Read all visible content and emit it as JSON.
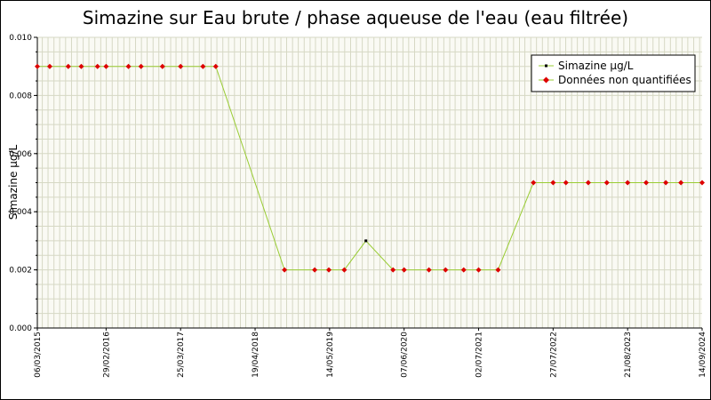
{
  "chart_data": {
    "type": "line",
    "title": "Simazine sur Eau brute / phase aqueuse de l'eau (eau filtrée)",
    "ylabel": "Simazine µg/L",
    "xlabel": "",
    "ylim": [
      0,
      0.01
    ],
    "y_ticks": [
      "0.000",
      "0.002",
      "0.004",
      "0.006",
      "0.008",
      "0.010"
    ],
    "x_range": [
      "2015-03-06",
      "2024-09-14"
    ],
    "x_tick_labels": [
      {
        "date": "2015-03-06",
        "label": "06/03/2015"
      },
      {
        "date": "2016-02-29",
        "label": "29/02/2016"
      },
      {
        "date": "2017-03-25",
        "label": "25/03/2017"
      },
      {
        "date": "2018-04-19",
        "label": "19/04/2018"
      },
      {
        "date": "2019-05-14",
        "label": "14/05/2019"
      },
      {
        "date": "2020-06-07",
        "label": "07/06/2020"
      },
      {
        "date": "2021-07-02",
        "label": "02/07/2021"
      },
      {
        "date": "2022-07-27",
        "label": "27/07/2022"
      },
      {
        "date": "2023-08-21",
        "label": "21/08/2023"
      },
      {
        "date": "2024-09-14",
        "label": "14/09/2024"
      }
    ],
    "grid": true,
    "legend_position": "top-right",
    "line_color": "#99cc33",
    "series": [
      {
        "name": "Simazine µg/L",
        "color": "#000000",
        "points": [
          {
            "x": "2019-11-20",
            "y": 0.003
          }
        ]
      },
      {
        "name": "Données non quantifiées",
        "color": "#dd0000",
        "points": [
          {
            "x": "2015-03-06",
            "y": 0.009
          },
          {
            "x": "2015-05-10",
            "y": 0.009
          },
          {
            "x": "2015-08-15",
            "y": 0.009
          },
          {
            "x": "2015-10-22",
            "y": 0.009
          },
          {
            "x": "2016-01-15",
            "y": 0.009
          },
          {
            "x": "2016-02-29",
            "y": 0.009
          },
          {
            "x": "2016-06-25",
            "y": 0.009
          },
          {
            "x": "2016-08-30",
            "y": 0.009
          },
          {
            "x": "2016-12-20",
            "y": 0.009
          },
          {
            "x": "2017-03-25",
            "y": 0.009
          },
          {
            "x": "2017-07-20",
            "y": 0.009
          },
          {
            "x": "2017-09-25",
            "y": 0.009
          },
          {
            "x": "2018-09-20",
            "y": 0.002
          },
          {
            "x": "2019-02-25",
            "y": 0.002
          },
          {
            "x": "2019-05-10",
            "y": 0.002
          },
          {
            "x": "2019-07-30",
            "y": 0.002
          },
          {
            "x": "2020-04-10",
            "y": 0.002
          },
          {
            "x": "2020-06-07",
            "y": 0.002
          },
          {
            "x": "2020-10-15",
            "y": 0.002
          },
          {
            "x": "2021-01-10",
            "y": 0.002
          },
          {
            "x": "2021-04-15",
            "y": 0.002
          },
          {
            "x": "2021-07-02",
            "y": 0.002
          },
          {
            "x": "2021-10-12",
            "y": 0.002
          },
          {
            "x": "2022-04-15",
            "y": 0.005
          },
          {
            "x": "2022-07-27",
            "y": 0.005
          },
          {
            "x": "2022-10-02",
            "y": 0.005
          },
          {
            "x": "2023-01-27",
            "y": 0.005
          },
          {
            "x": "2023-05-04",
            "y": 0.005
          },
          {
            "x": "2023-08-21",
            "y": 0.005
          },
          {
            "x": "2023-11-26",
            "y": 0.005
          },
          {
            "x": "2024-03-08",
            "y": 0.005
          },
          {
            "x": "2024-05-26",
            "y": 0.005
          },
          {
            "x": "2024-09-14",
            "y": 0.005
          }
        ]
      }
    ]
  }
}
